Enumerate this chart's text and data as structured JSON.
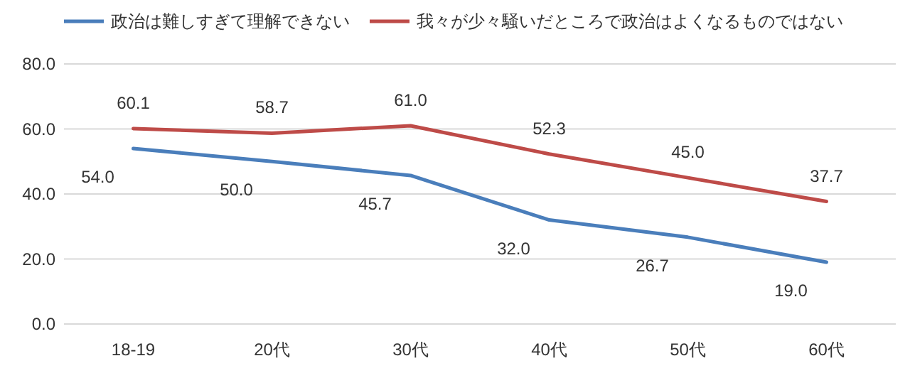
{
  "chart_data": {
    "type": "line",
    "categories": [
      "18-19",
      "20代",
      "30代",
      "40代",
      "50代",
      "60代"
    ],
    "series": [
      {
        "name": "政治は難しすぎて理解できない",
        "color": "#4a7ebb",
        "values": [
          54.0,
          50.0,
          45.7,
          32.0,
          26.7,
          19.0
        ],
        "value_labels": [
          "54.0",
          "50.0",
          "45.7",
          "32.0",
          "26.7",
          "19.0"
        ]
      },
      {
        "name": "我々が少々騒いだところで政治はよくなるものではない",
        "color": "#be4b48",
        "values": [
          60.1,
          58.7,
          61.0,
          52.3,
          45.0,
          37.7
        ],
        "value_labels": [
          "60.1",
          "58.7",
          "61.0",
          "52.3",
          "45.0",
          "37.7"
        ]
      }
    ],
    "ylim": [
      0,
      80
    ],
    "yticks": [
      {
        "value": 0,
        "label": "0.0"
      },
      {
        "value": 20,
        "label": "20.0"
      },
      {
        "value": 40,
        "label": "40.0"
      },
      {
        "value": 60,
        "label": "60.0"
      },
      {
        "value": 80,
        "label": "80.0"
      }
    ],
    "grid": "y",
    "legend": "top left",
    "marker": "none",
    "line_style": "solid"
  }
}
